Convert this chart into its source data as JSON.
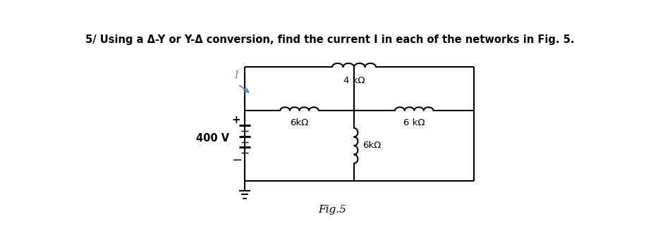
{
  "title": "5/ Using a Δ-Y or Y-Δ conversion, find the current I in each of the networks in Fig. 5.",
  "fig_label": "Fig.5",
  "bg_color": "#ffffff",
  "line_color": "#000000",
  "lw": 1.5,
  "voltage_source_label": "400 V",
  "r1_label": "6kΩ",
  "r2_label": "4 kΩ",
  "r3_label": "6 kΩ",
  "r4_label": "6kΩ",
  "current_label": "I",
  "current_color": "#5588cc",
  "plus_label": "+",
  "minus_label": "−"
}
